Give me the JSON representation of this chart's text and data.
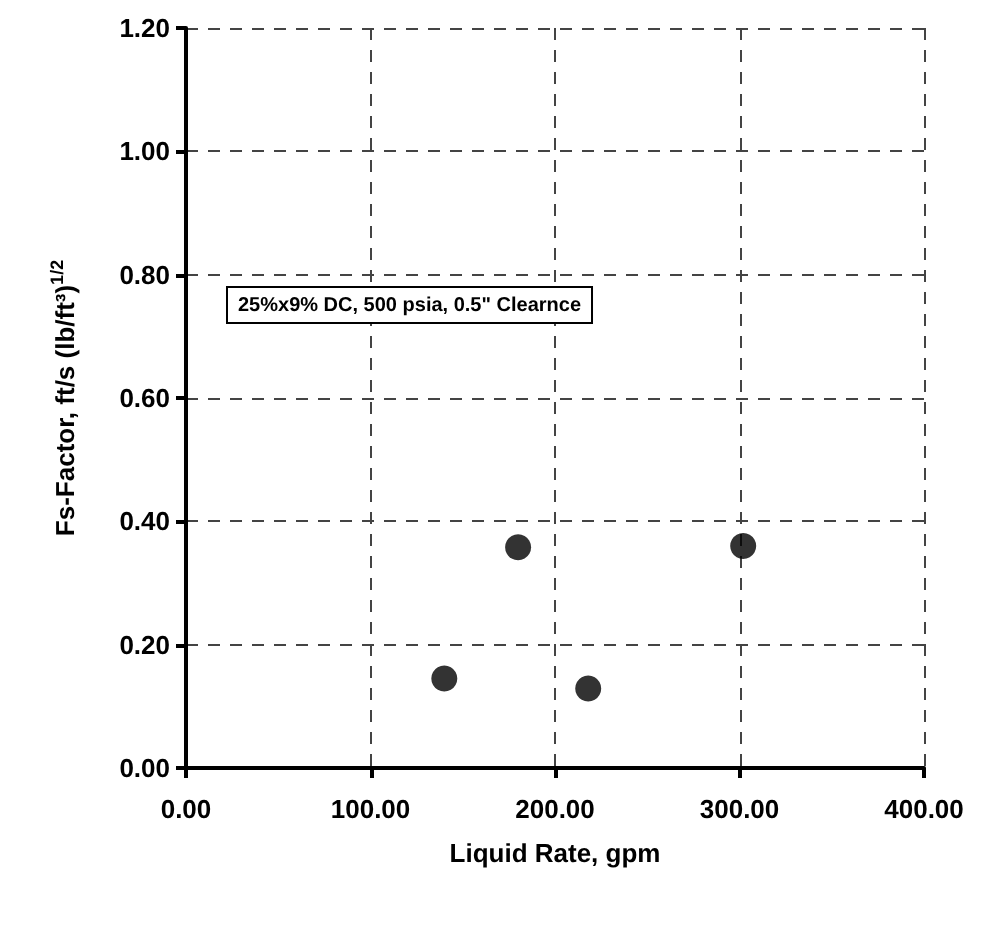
{
  "chart_data": {
    "type": "scatter",
    "xlabel": "Liquid Rate, gpm",
    "ylabel": "Fs-Factor, ft/s (lb/ft³)$^{1/2}$",
    "annotations": [
      "25%x9% DC, 500 psia, 0.5\" Clearnce"
    ],
    "x": [
      140,
      180,
      218,
      302
    ],
    "series": [
      {
        "color": "#000000",
        "values": [
          0.145,
          0.358,
          0.129,
          0.36
        ]
      }
    ],
    "xlim": [
      0,
      400
    ],
    "xticks": [
      {
        "value": 0,
        "label": "0.00"
      },
      {
        "value": 100,
        "label": "100.00"
      },
      {
        "value": 200,
        "label": "200.00"
      },
      {
        "value": 300,
        "label": "300.00"
      },
      {
        "value": 400,
        "label": "400.00"
      }
    ],
    "ylim": [
      0,
      1.2
    ],
    "yticks": [
      {
        "value": 0,
        "label": "0.00"
      },
      {
        "value": 0.2,
        "label": "0.20"
      },
      {
        "value": 0.4,
        "label": "0.40"
      },
      {
        "value": 0.6,
        "label": "0.60"
      },
      {
        "value": 0.8,
        "label": "0.80"
      },
      {
        "value": 1,
        "label": "1.00"
      },
      {
        "value": 1.2,
        "label": "1.20"
      }
    ],
    "grid": true,
    "marker": "circle"
  }
}
